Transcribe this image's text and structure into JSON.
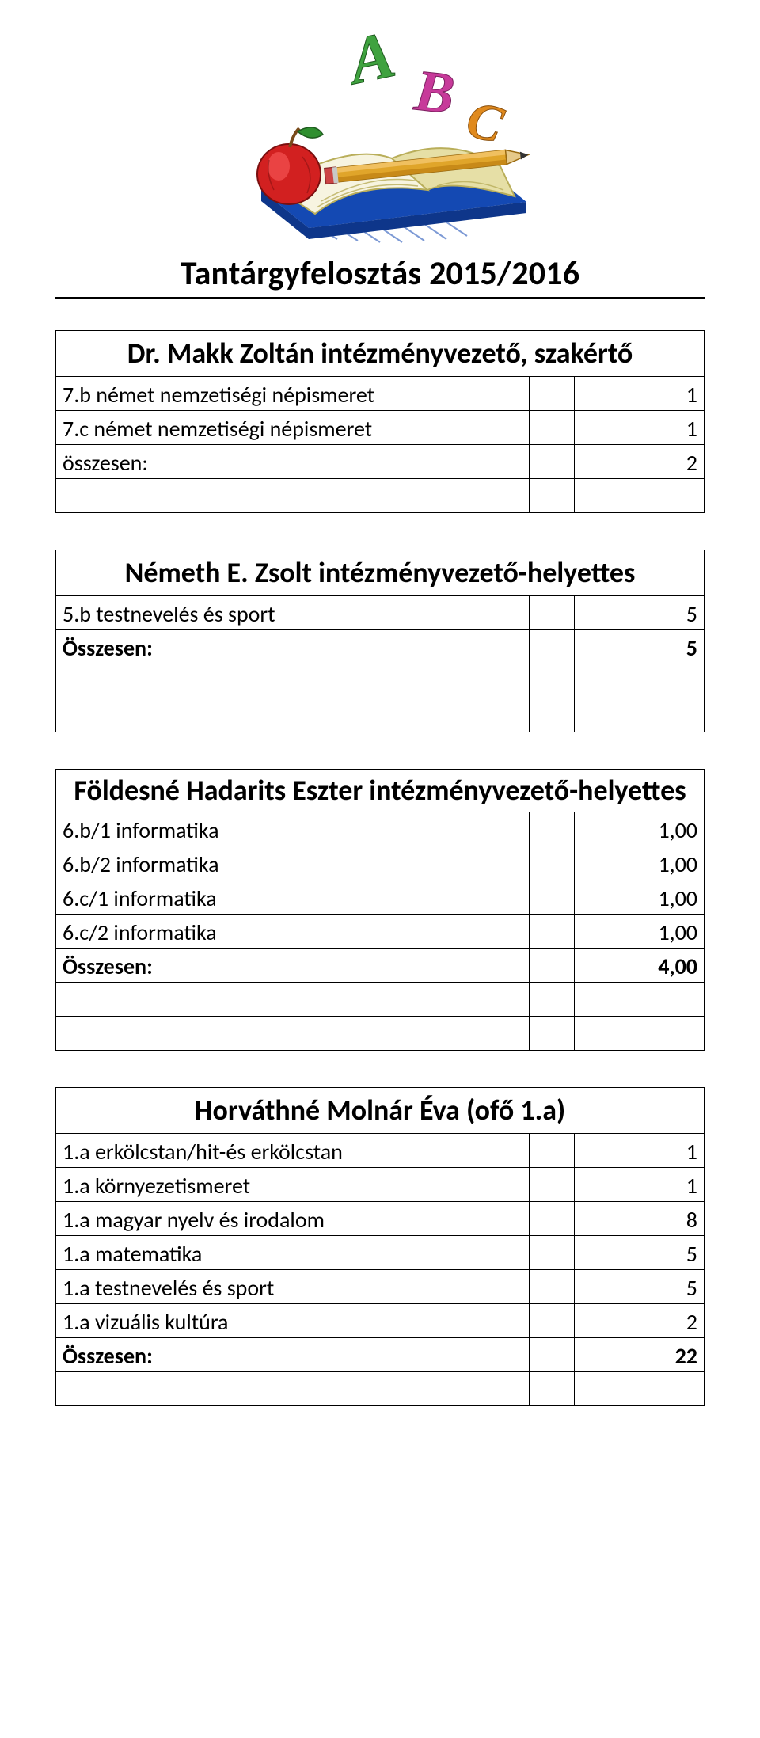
{
  "title": "Tantárgyfelosztás 2015/2016",
  "hero": {
    "book_outer_color": "#1449b3",
    "book_inner_color": "#3a6ad1",
    "page_color": "#f7f4e0",
    "page_shade_color": "#e6dfa6",
    "apple_color": "#d22020",
    "apple_highlight": "#ef4a4a",
    "apple_leaf": "#2f8f2f",
    "apple_stem": "#7a4a1a",
    "pencil_body": "#e0a52a",
    "pencil_tip_wood": "#e6c98a",
    "pencil_tip_lead": "#333333",
    "pencil_eraser": "#c44",
    "letter_a_color": "#3fa23f",
    "letter_b_color": "#c73a9a",
    "letter_c_color": "#e08a1e"
  },
  "blocks": [
    {
      "heading": "Dr. Makk Zoltán intézményvezető, szakértő",
      "heading_multiline": false,
      "rows": [
        {
          "label": "7.b német nemzetiségi népismeret",
          "value": "1"
        },
        {
          "label": "7.c német nemzetiségi népismeret",
          "value": "1"
        }
      ],
      "total": {
        "label": "összesen:",
        "value": "2",
        "bold": false
      },
      "trailing_empty_rows": 1
    },
    {
      "heading": "Németh E. Zsolt intézményvezető-helyettes",
      "heading_multiline": false,
      "rows": [
        {
          "label": "5.b testnevelés és sport",
          "value": "5"
        }
      ],
      "total": {
        "label": "Összesen:",
        "value": "5",
        "bold": true
      },
      "trailing_empty_rows": 2
    },
    {
      "heading": "Földesné Hadarits Eszter intézményvezető-helyettes",
      "heading_multiline": true,
      "rows": [
        {
          "label": "6.b/1 informatika",
          "value": "1,00"
        },
        {
          "label": "6.b/2 informatika",
          "value": "1,00"
        },
        {
          "label": "6.c/1 informatika",
          "value": "1,00"
        },
        {
          "label": "6.c/2 informatika",
          "value": "1,00"
        }
      ],
      "total": {
        "label": "Összesen:",
        "value": "4,00",
        "bold": true
      },
      "trailing_empty_rows": 2
    },
    {
      "heading": "Horváthné Molnár Éva (ofő 1.a)",
      "heading_multiline": false,
      "rows": [
        {
          "label": "1.a erkölcstan/hit-és erkölcstan",
          "value": "1"
        },
        {
          "label": "1.a környezetismeret",
          "value": "1"
        },
        {
          "label": "1.a magyar nyelv és irodalom",
          "value": "8"
        },
        {
          "label": "1.a matematika",
          "value": "5"
        },
        {
          "label": "1.a testnevelés és sport",
          "value": "5"
        },
        {
          "label": "1.a vizuális kultúra",
          "value": "2"
        }
      ],
      "total": {
        "label": "Összesen:",
        "value": "22",
        "bold": true
      },
      "trailing_empty_rows": 1
    }
  ]
}
